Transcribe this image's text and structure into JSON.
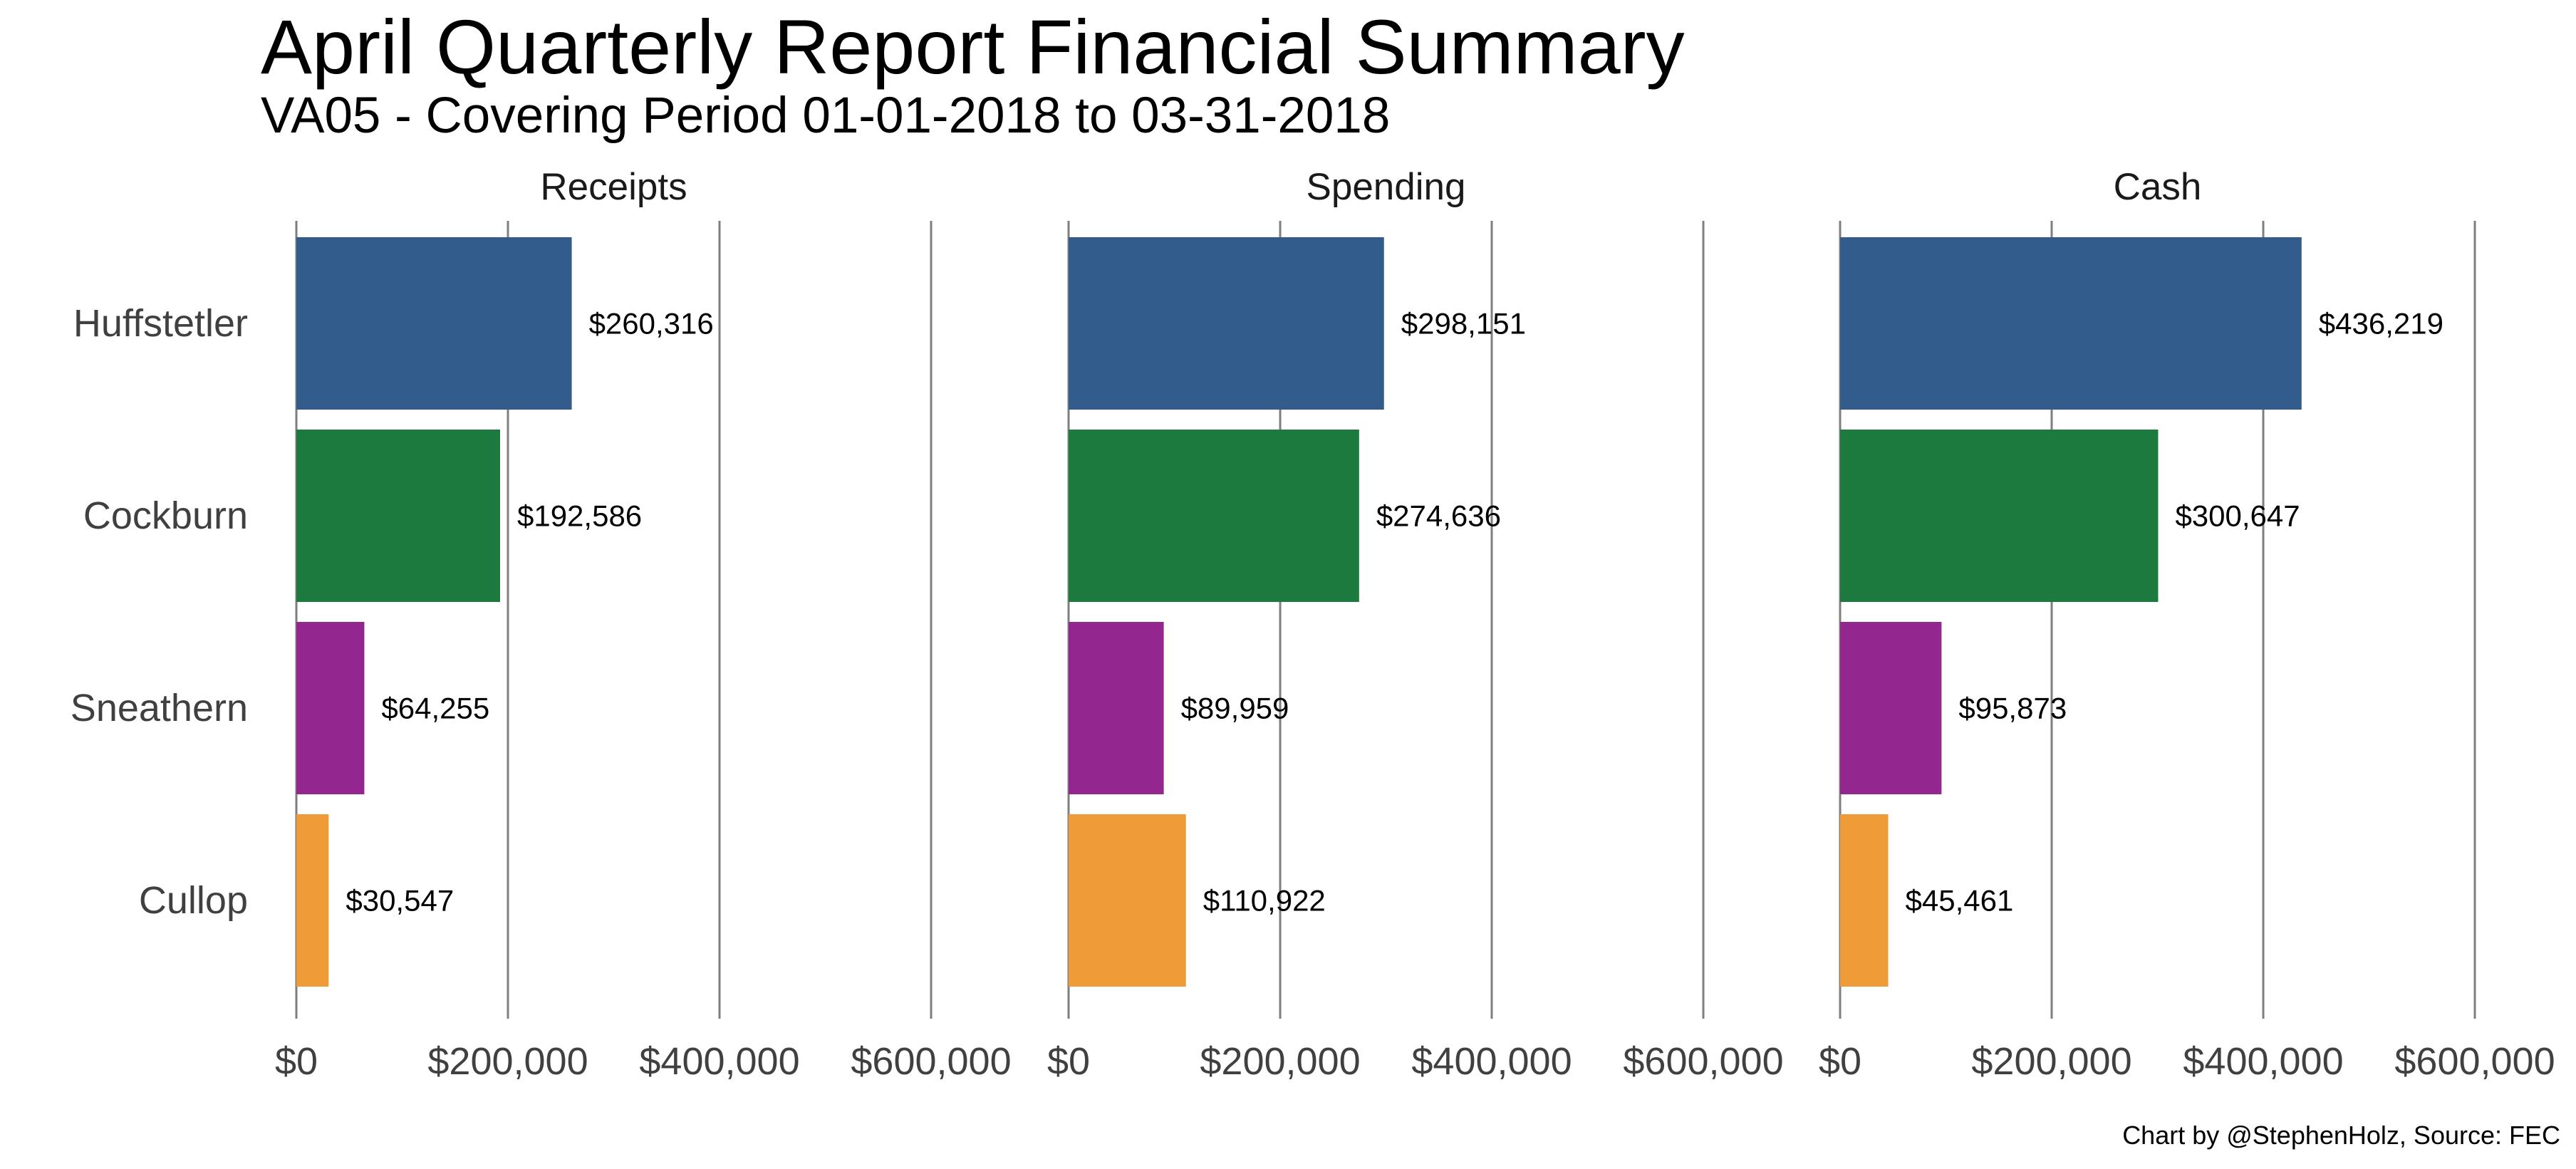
{
  "title": "April Quarterly Report Financial Summary",
  "subtitle": "VA05 - Covering Period 01-01-2018 to 03-31-2018",
  "caption": "Chart by @StephenHolz, Source: FEC",
  "chart_data": {
    "type": "bar",
    "orientation": "horizontal",
    "layout": "faceted",
    "categories": [
      "Huffstetler",
      "Cockburn",
      "Sneathern",
      "Cullop"
    ],
    "category_colors": [
      "#325C8C",
      "#1C7A3E",
      "#94278F",
      "#EF9C38"
    ],
    "xlim": [
      0,
      600000
    ],
    "x_ticks": [
      0,
      200000,
      400000,
      600000
    ],
    "x_tick_labels": [
      "$0",
      "$200,000",
      "$400,000",
      "$600,000"
    ],
    "grid": "vertical lines at x ticks",
    "legend": "none",
    "facets": [
      {
        "name": "Receipts",
        "values": [
          260316,
          192586,
          64255,
          30547
        ],
        "labels": [
          "$260,316",
          "$192,586",
          "$64,255",
          "$30,547"
        ]
      },
      {
        "name": "Spending",
        "values": [
          298151,
          274636,
          89959,
          110922
        ],
        "labels": [
          "$298,151",
          "$274,636",
          "$89,959",
          "$110,922"
        ]
      },
      {
        "name": "Cash",
        "values": [
          436219,
          300647,
          95873,
          45461
        ],
        "labels": [
          "$436,219",
          "$300,647",
          "$95,873",
          "$45,461"
        ]
      }
    ]
  }
}
